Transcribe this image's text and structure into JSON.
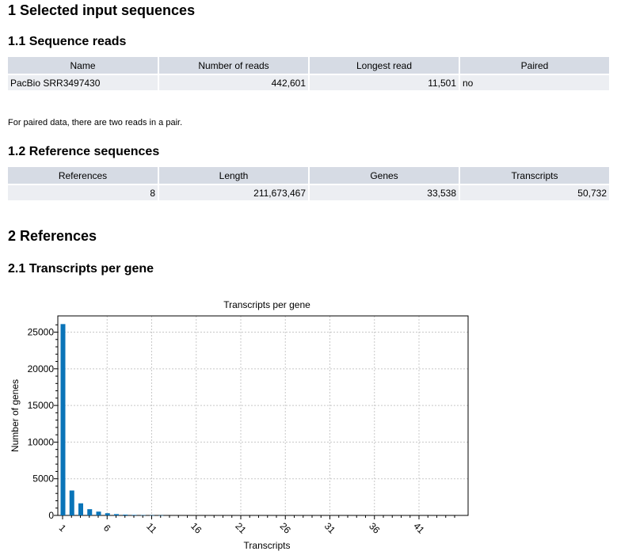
{
  "section1": {
    "title": "1 Selected input sequences"
  },
  "sub11": {
    "title": "1.1 Sequence reads",
    "headers": [
      "Name",
      "Number of reads",
      "Longest read",
      "Paired"
    ],
    "row": {
      "name": "PacBio SRR3497430",
      "reads": "442,601",
      "longest": "11,501",
      "paired": "no"
    },
    "note": "For paired data, there are two reads in a pair."
  },
  "sub12": {
    "title": "1.2 Reference sequences",
    "headers": [
      "References",
      "Length",
      "Genes",
      "Transcripts"
    ],
    "row": {
      "references": "8",
      "length": "211,673,467",
      "genes": "33,538",
      "transcripts": "50,732"
    }
  },
  "section2": {
    "title": "2 References"
  },
  "sub21": {
    "title": "2.1 Transcripts per gene"
  },
  "chart_data": {
    "type": "bar",
    "title": "Transcripts per gene",
    "xlabel": "Transcripts",
    "ylabel": "Number of genes",
    "x": [
      1,
      2,
      3,
      4,
      5,
      6,
      7,
      8,
      9,
      10,
      11,
      12
    ],
    "values": [
      26100,
      3400,
      1650,
      850,
      520,
      300,
      180,
      110,
      70,
      40,
      25,
      15
    ],
    "xticks": [
      1,
      6,
      11,
      16,
      21,
      26,
      31,
      36,
      41
    ],
    "yticks": [
      0,
      5000,
      10000,
      15000,
      20000,
      25000
    ],
    "xlim": [
      0,
      46
    ],
    "ylim": [
      0,
      27000
    ],
    "grid": true,
    "bar_color": "#0a74b8"
  }
}
